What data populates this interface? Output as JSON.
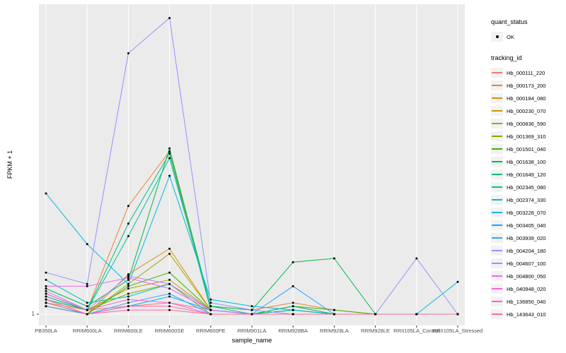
{
  "chart": {
    "y_tick_label": "1"
  },
  "legend": {
    "quant_status_title": "quant_status",
    "quant_status_items": [
      {
        "label": "OK",
        "shape": "point",
        "color": "#000000"
      }
    ],
    "tracking_id_title": "tracking_id"
  },
  "chart_data": {
    "type": "line",
    "title": "",
    "xlabel": "sample_name",
    "ylabel": "FPKM + 1",
    "y_scale": "log10",
    "y_ticks": [
      1
    ],
    "grid": "vertical-major",
    "legend_position": "right",
    "panel_bg": "#EBEBEB",
    "grid_color": "#FFFFFF",
    "point_color": "#000000",
    "categories": [
      "PB350LA",
      "RRIM600LA",
      "RRIM600LE",
      "RRIM600SE",
      "RRIM600PE",
      "RRIM901LA",
      "RRIM928BA",
      "RRIM928LA",
      "RRIM928LE",
      "RRII105LA_Control",
      "RRII105LA_Stressed"
    ],
    "series": [
      {
        "name": "Hb_000111_220",
        "color": "#F8766D",
        "values": [
          1.6,
          1.1,
          1.2,
          1.3,
          1.1,
          1.0,
          1.1,
          1.0,
          1.0,
          1.0,
          1.0
        ]
      },
      {
        "name": "Hb_000173_200",
        "color": "#EA8331",
        "values": [
          1.3,
          1.1,
          12.0,
          42.0,
          1.2,
          1.1,
          1.3,
          1.1,
          1.0,
          1.0,
          1.0
        ]
      },
      {
        "name": "Hb_000184_080",
        "color": "#D89000",
        "values": [
          1.2,
          1.0,
          2.5,
          4.5,
          1.1,
          1.0,
          1.2,
          1.0,
          1.0,
          1.0,
          1.0
        ]
      },
      {
        "name": "Hb_000230_070",
        "color": "#C09B00",
        "values": [
          1.4,
          1.1,
          1.8,
          2.2,
          1.1,
          1.0,
          1.1,
          1.0,
          1.0,
          1.0,
          1.0
        ]
      },
      {
        "name": "Hb_000836_590",
        "color": "#A3A500",
        "values": [
          1.2,
          1.0,
          2.0,
          4.0,
          1.1,
          1.0,
          1.0,
          1.0,
          1.0,
          1.0,
          1.0
        ]
      },
      {
        "name": "Hb_001369_310",
        "color": "#7CAE00",
        "values": [
          1.5,
          1.1,
          1.6,
          2.0,
          1.0,
          1.0,
          1.1,
          1.0,
          1.0,
          1.0,
          1.0
        ]
      },
      {
        "name": "Hb_001501_040",
        "color": "#39B600",
        "values": [
          1.3,
          1.0,
          1.9,
          2.6,
          1.1,
          1.0,
          1.2,
          1.1,
          1.0,
          1.0,
          1.0
        ]
      },
      {
        "name": "Hb_001638_100",
        "color": "#00BB4E",
        "values": [
          1.8,
          1.2,
          2.2,
          45.0,
          1.2,
          1.1,
          3.3,
          3.6,
          1.0,
          1.0,
          1.0
        ]
      },
      {
        "name": "Hb_001649_120",
        "color": "#00BF7D",
        "values": [
          1.4,
          1.1,
          8.0,
          40.0,
          1.1,
          1.0,
          1.2,
          1.0,
          1.0,
          1.0,
          1.0
        ]
      },
      {
        "name": "Hb_002345_080",
        "color": "#00C1A3",
        "values": [
          1.5,
          1.1,
          6.0,
          36.0,
          1.2,
          1.0,
          1.1,
          1.0,
          1.0,
          1.0,
          1.0
        ]
      },
      {
        "name": "Hb_002374_330",
        "color": "#00BFC4",
        "values": [
          2.2,
          1.3,
          1.5,
          2.0,
          1.1,
          1.0,
          1.0,
          1.0,
          1.0,
          1.0,
          1.0
        ]
      },
      {
        "name": "Hb_003228_070",
        "color": "#00BAE0",
        "values": [
          16.0,
          5.0,
          2.0,
          24.0,
          1.4,
          1.2,
          1.1,
          1.0,
          1.0,
          1.0,
          2.1
        ]
      },
      {
        "name": "Hb_003405_040",
        "color": "#00B0F6",
        "values": [
          1.3,
          1.0,
          1.2,
          1.5,
          1.1,
          1.0,
          1.0,
          1.0,
          1.0,
          1.0,
          1.0
        ]
      },
      {
        "name": "Hb_003939_020",
        "color": "#35A2FF",
        "values": [
          1.2,
          1.0,
          1.3,
          1.6,
          1.0,
          1.0,
          1.9,
          1.0,
          1.0,
          1.0,
          1.0
        ]
      },
      {
        "name": "Hb_004204_180",
        "color": "#9590FF",
        "values": [
          2.6,
          2.0,
          400.0,
          900.0,
          1.3,
          1.1,
          1.0,
          1.0,
          1.0,
          3.6,
          1.0
        ]
      },
      {
        "name": "Hb_004607_100",
        "color": "#C77CFF",
        "values": [
          1.7,
          1.1,
          2.4,
          2.0,
          1.1,
          1.0,
          1.0,
          1.0,
          1.0,
          1.0,
          1.0
        ]
      },
      {
        "name": "Hb_004800_050",
        "color": "#E76BF3",
        "values": [
          1.9,
          1.9,
          2.3,
          1.8,
          1.1,
          1.0,
          1.0,
          1.0,
          1.0,
          1.0,
          1.0
        ]
      },
      {
        "name": "Hb_040948_020",
        "color": "#FA62DB",
        "values": [
          1.6,
          1.1,
          1.4,
          1.3,
          1.0,
          1.0,
          1.0,
          1.0,
          1.0,
          1.0,
          1.0
        ]
      },
      {
        "name": "Hb_136850_040",
        "color": "#FF62BC",
        "values": [
          1.4,
          1.0,
          1.2,
          1.2,
          1.0,
          1.0,
          1.0,
          1.0,
          1.0,
          1.0,
          1.0
        ]
      },
      {
        "name": "Hb_143643_010",
        "color": "#FF6A98",
        "values": [
          1.3,
          1.0,
          1.1,
          1.1,
          1.0,
          1.0,
          1.0,
          1.0,
          1.0,
          1.0,
          1.0
        ]
      }
    ]
  }
}
